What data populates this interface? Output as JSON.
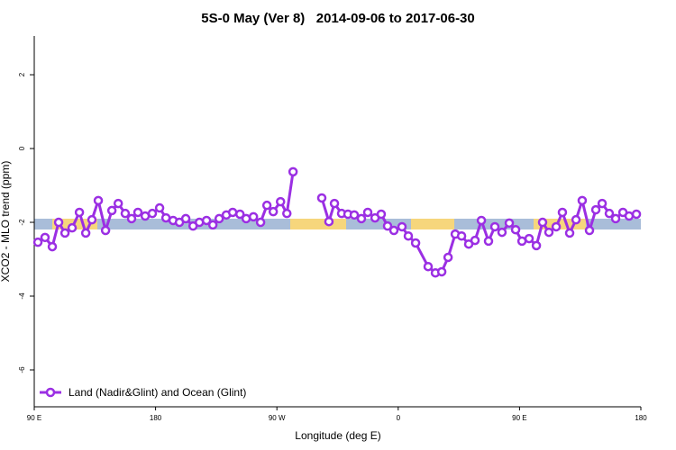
{
  "chart_data": {
    "type": "line",
    "title": "5S-0 May (Ver 8)   2014-09-06 to 2017-06-30",
    "xlabel": "Longitude (deg E)",
    "ylabel": "XCO2 - MLO trend (ppm)",
    "xlim": [
      90,
      540
    ],
    "xticks": [
      {
        "value": 90,
        "label": "90 E"
      },
      {
        "value": 180,
        "label": "180"
      },
      {
        "value": 270,
        "label": "90 W"
      },
      {
        "value": 360,
        "label": "0"
      },
      {
        "value": 450,
        "label": "90 E"
      },
      {
        "value": 540,
        "label": "180"
      }
    ],
    "ylim": [
      -7,
      3.05
    ],
    "yticks": [
      2,
      0,
      -2,
      -4,
      -6
    ],
    "legend": "lower left",
    "series": [
      {
        "name": "Land (Nadir&Glint) and Ocean (Glint)",
        "color": "#9b2fe3",
        "x": [
          92.7,
          98.0,
          103.4,
          108.1,
          112.8,
          118.1,
          123.5,
          128.2,
          132.8,
          137.5,
          142.9,
          147.6,
          152.3,
          157.5,
          162.2,
          166.9,
          172.3,
          177.6,
          183.0,
          187.7,
          193.0,
          197.7,
          202.4,
          207.8,
          212.5,
          217.8,
          222.5,
          227.2,
          232.5,
          237.2,
          242.6,
          247.2,
          252.6,
          257.9,
          262.6,
          267.3,
          272.7,
          277.4,
          282.0,
          null,
          303.3,
          308.6,
          312.7,
          318.0,
          322.7,
          327.4,
          332.7,
          337.4,
          342.8,
          347.4,
          352.1,
          356.8,
          362.8,
          367.5,
          372.9,
          382.2,
          387.6,
          392.3,
          397.0,
          402.3,
          407.0,
          412.3,
          417.0,
          421.7,
          427.0,
          431.7,
          437.0,
          442.4,
          447.1,
          451.8,
          457.1,
          462.5,
          467.1,
          471.8,
          477.2,
          481.8,
          487.2,
          491.9,
          496.5,
          501.9,
          506.6,
          511.3,
          516.6,
          521.3,
          526.7,
          531.3,
          536.7
        ],
        "values": [
          -2.54,
          -2.41,
          -2.66,
          -2.0,
          -2.29,
          -2.15,
          -1.73,
          -2.29,
          -1.93,
          -1.41,
          -2.22,
          -1.68,
          -1.49,
          -1.76,
          -1.9,
          -1.73,
          -1.83,
          -1.76,
          -1.61,
          -1.88,
          -1.95,
          -2.0,
          -1.9,
          -2.1,
          -2.0,
          -1.95,
          -2.07,
          -1.9,
          -1.8,
          -1.73,
          -1.78,
          -1.9,
          -1.85,
          -2.0,
          -1.54,
          -1.71,
          -1.44,
          -1.76,
          -0.63,
          null,
          -1.34,
          -1.98,
          -1.49,
          -1.76,
          -1.78,
          -1.8,
          -1.9,
          -1.73,
          -1.88,
          -1.78,
          -2.1,
          -2.22,
          -2.12,
          -2.37,
          -2.56,
          -3.2,
          -3.37,
          -3.34,
          -2.95,
          -2.32,
          -2.37,
          -2.59,
          -2.49,
          -1.95,
          -2.51,
          -2.12,
          -2.27,
          -2.02,
          -2.2,
          -2.51,
          -2.44,
          -2.63,
          -2.0,
          -2.27,
          -2.12,
          -1.73,
          -2.29,
          -1.93,
          -1.41,
          -2.22,
          -1.66,
          -1.49,
          -1.76,
          -1.9,
          -1.73,
          -1.83,
          -1.78
        ]
      }
    ]
  }
}
